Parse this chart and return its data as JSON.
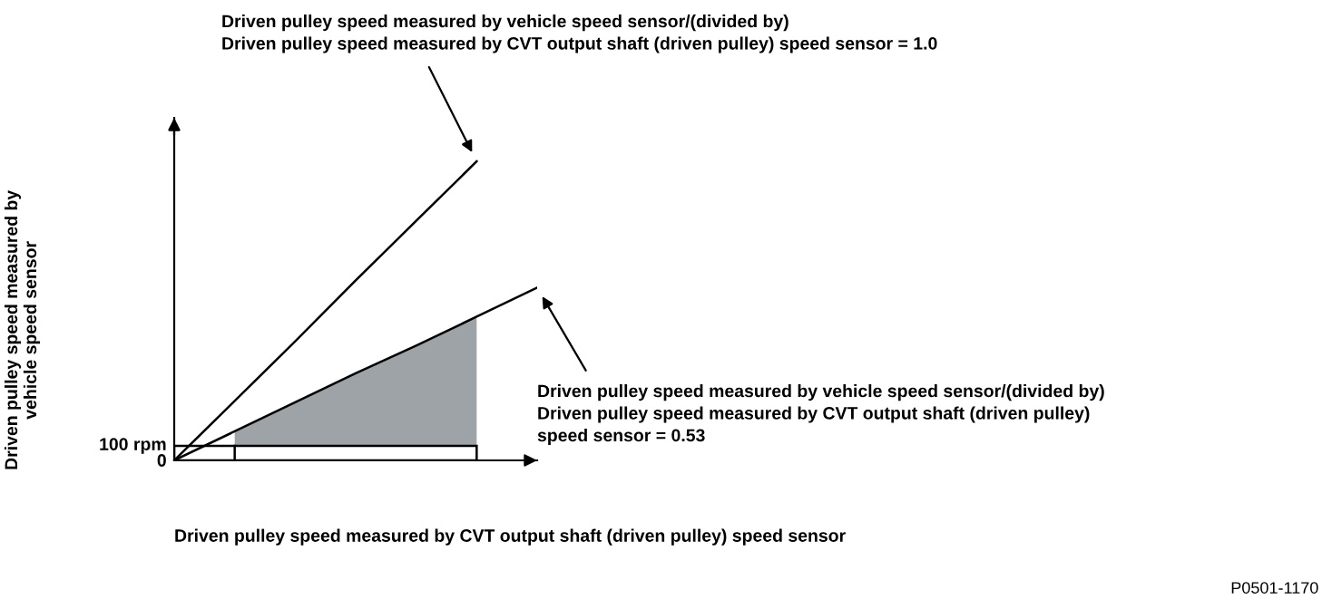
{
  "chart_data": {
    "type": "line",
    "xlabel": "Driven pulley speed measured by CVT output shaft (driven pulley) speed sensor",
    "ylabel": "Driven pulley speed measured by\nvehicle speed sensor",
    "categories": [
      null,
      null,
      null,
      null,
      null,
      null,
      null
    ],
    "ylim": [
      0,
      2360
    ],
    "yticks": [
      {
        "value": 0,
        "label": "0"
      },
      {
        "value": 100,
        "label": "100 rpm"
      }
    ],
    "tick_labels": "y",
    "grid": false,
    "bands": [
      {
        "axis": "y",
        "from": 0,
        "to": 100,
        "color": "#ffffff"
      }
    ],
    "series": [
      {
        "type": "area",
        "color": "#9ea3a8",
        "values": [
          null,
          200,
          400,
          600,
          790,
          990,
          null
        ]
      },
      {
        "color": "#000000",
        "values": [
          0,
          410,
          820,
          1240,
          1650,
          2060,
          null
        ]
      },
      {
        "color": "#000000",
        "values": [
          0,
          200,
          400,
          600,
          790,
          990,
          1190
        ]
      }
    ],
    "annotations": [
      "Driven pulley speed measured by vehicle speed sensor/(divided by)\nDriven pulley speed measured by CVT output shaft (driven pulley) speed sensor = 1.0",
      "Driven pulley speed measured by vehicle speed sensor/(divided by)\nDriven pulley speed measured by CVT output shaft (driven pulley)\nspeed sensor = 0.53",
      "P0501-1170"
    ]
  }
}
